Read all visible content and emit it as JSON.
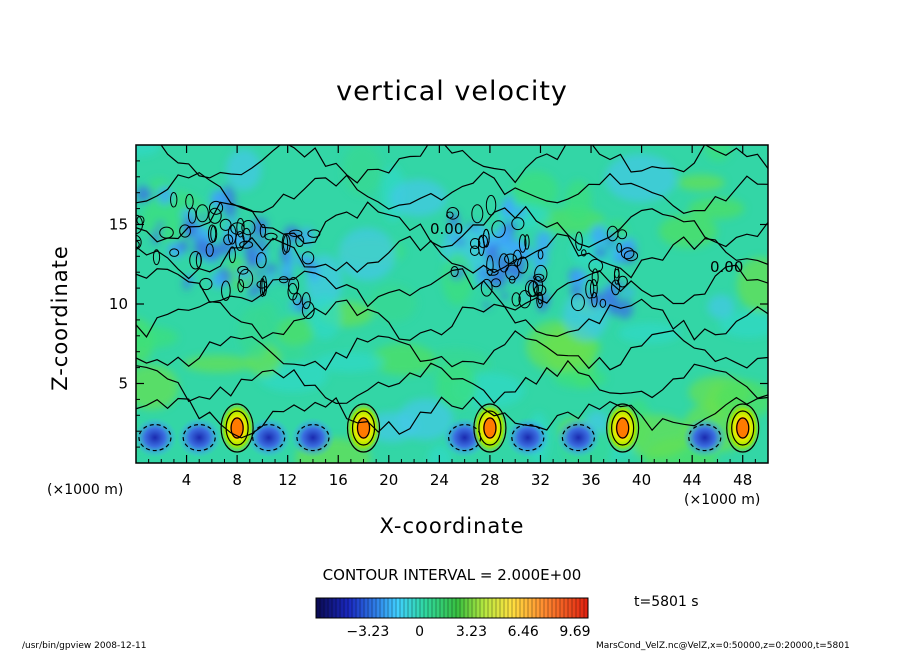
{
  "chart_data": {
    "type": "heatmap",
    "title": "vertical velocity",
    "xlabel": "X-coordinate",
    "ylabel": "Z-coordinate",
    "x_unit_left": "(×1000 m)",
    "x_unit_right": "(×1000 m)",
    "xlim": [
      0,
      50
    ],
    "ylim": [
      0,
      20
    ],
    "x_ticks": [
      4,
      8,
      12,
      16,
      20,
      24,
      28,
      32,
      36,
      40,
      44,
      48
    ],
    "y_ticks": [
      5,
      10,
      15
    ],
    "contour_interval_text": "CONTOUR INTERVAL = 2.000E+00",
    "contour_label": "0.00",
    "colorbar": {
      "ticks": [
        {
          "label": "−3.23",
          "value": -3.23
        },
        {
          "label": "0",
          "value": 0
        },
        {
          "label": "3.23",
          "value": 3.23
        },
        {
          "label": "6.46",
          "value": 6.46
        },
        {
          "label": "9.69",
          "value": 9.69
        }
      ],
      "range": [
        -6.46,
        10.5
      ]
    },
    "updraft_cores_x_km": [
      8,
      18,
      28,
      38.5,
      48
    ],
    "downdraft_cores_x_km": [
      1.5,
      5,
      10.5,
      14,
      26,
      31,
      35,
      45
    ]
  },
  "time_text": "t=5801 s",
  "footer_left": "/usr/bin/gpview   2008-12-11",
  "footer_right": "MarsCond_VelZ.nc@VelZ,x=0:50000,z=0:20000,t=5801",
  "colors": {
    "background_field": "#33d6a6",
    "positive_core": "#ffee00",
    "negative_core": "#1e3cc8"
  }
}
